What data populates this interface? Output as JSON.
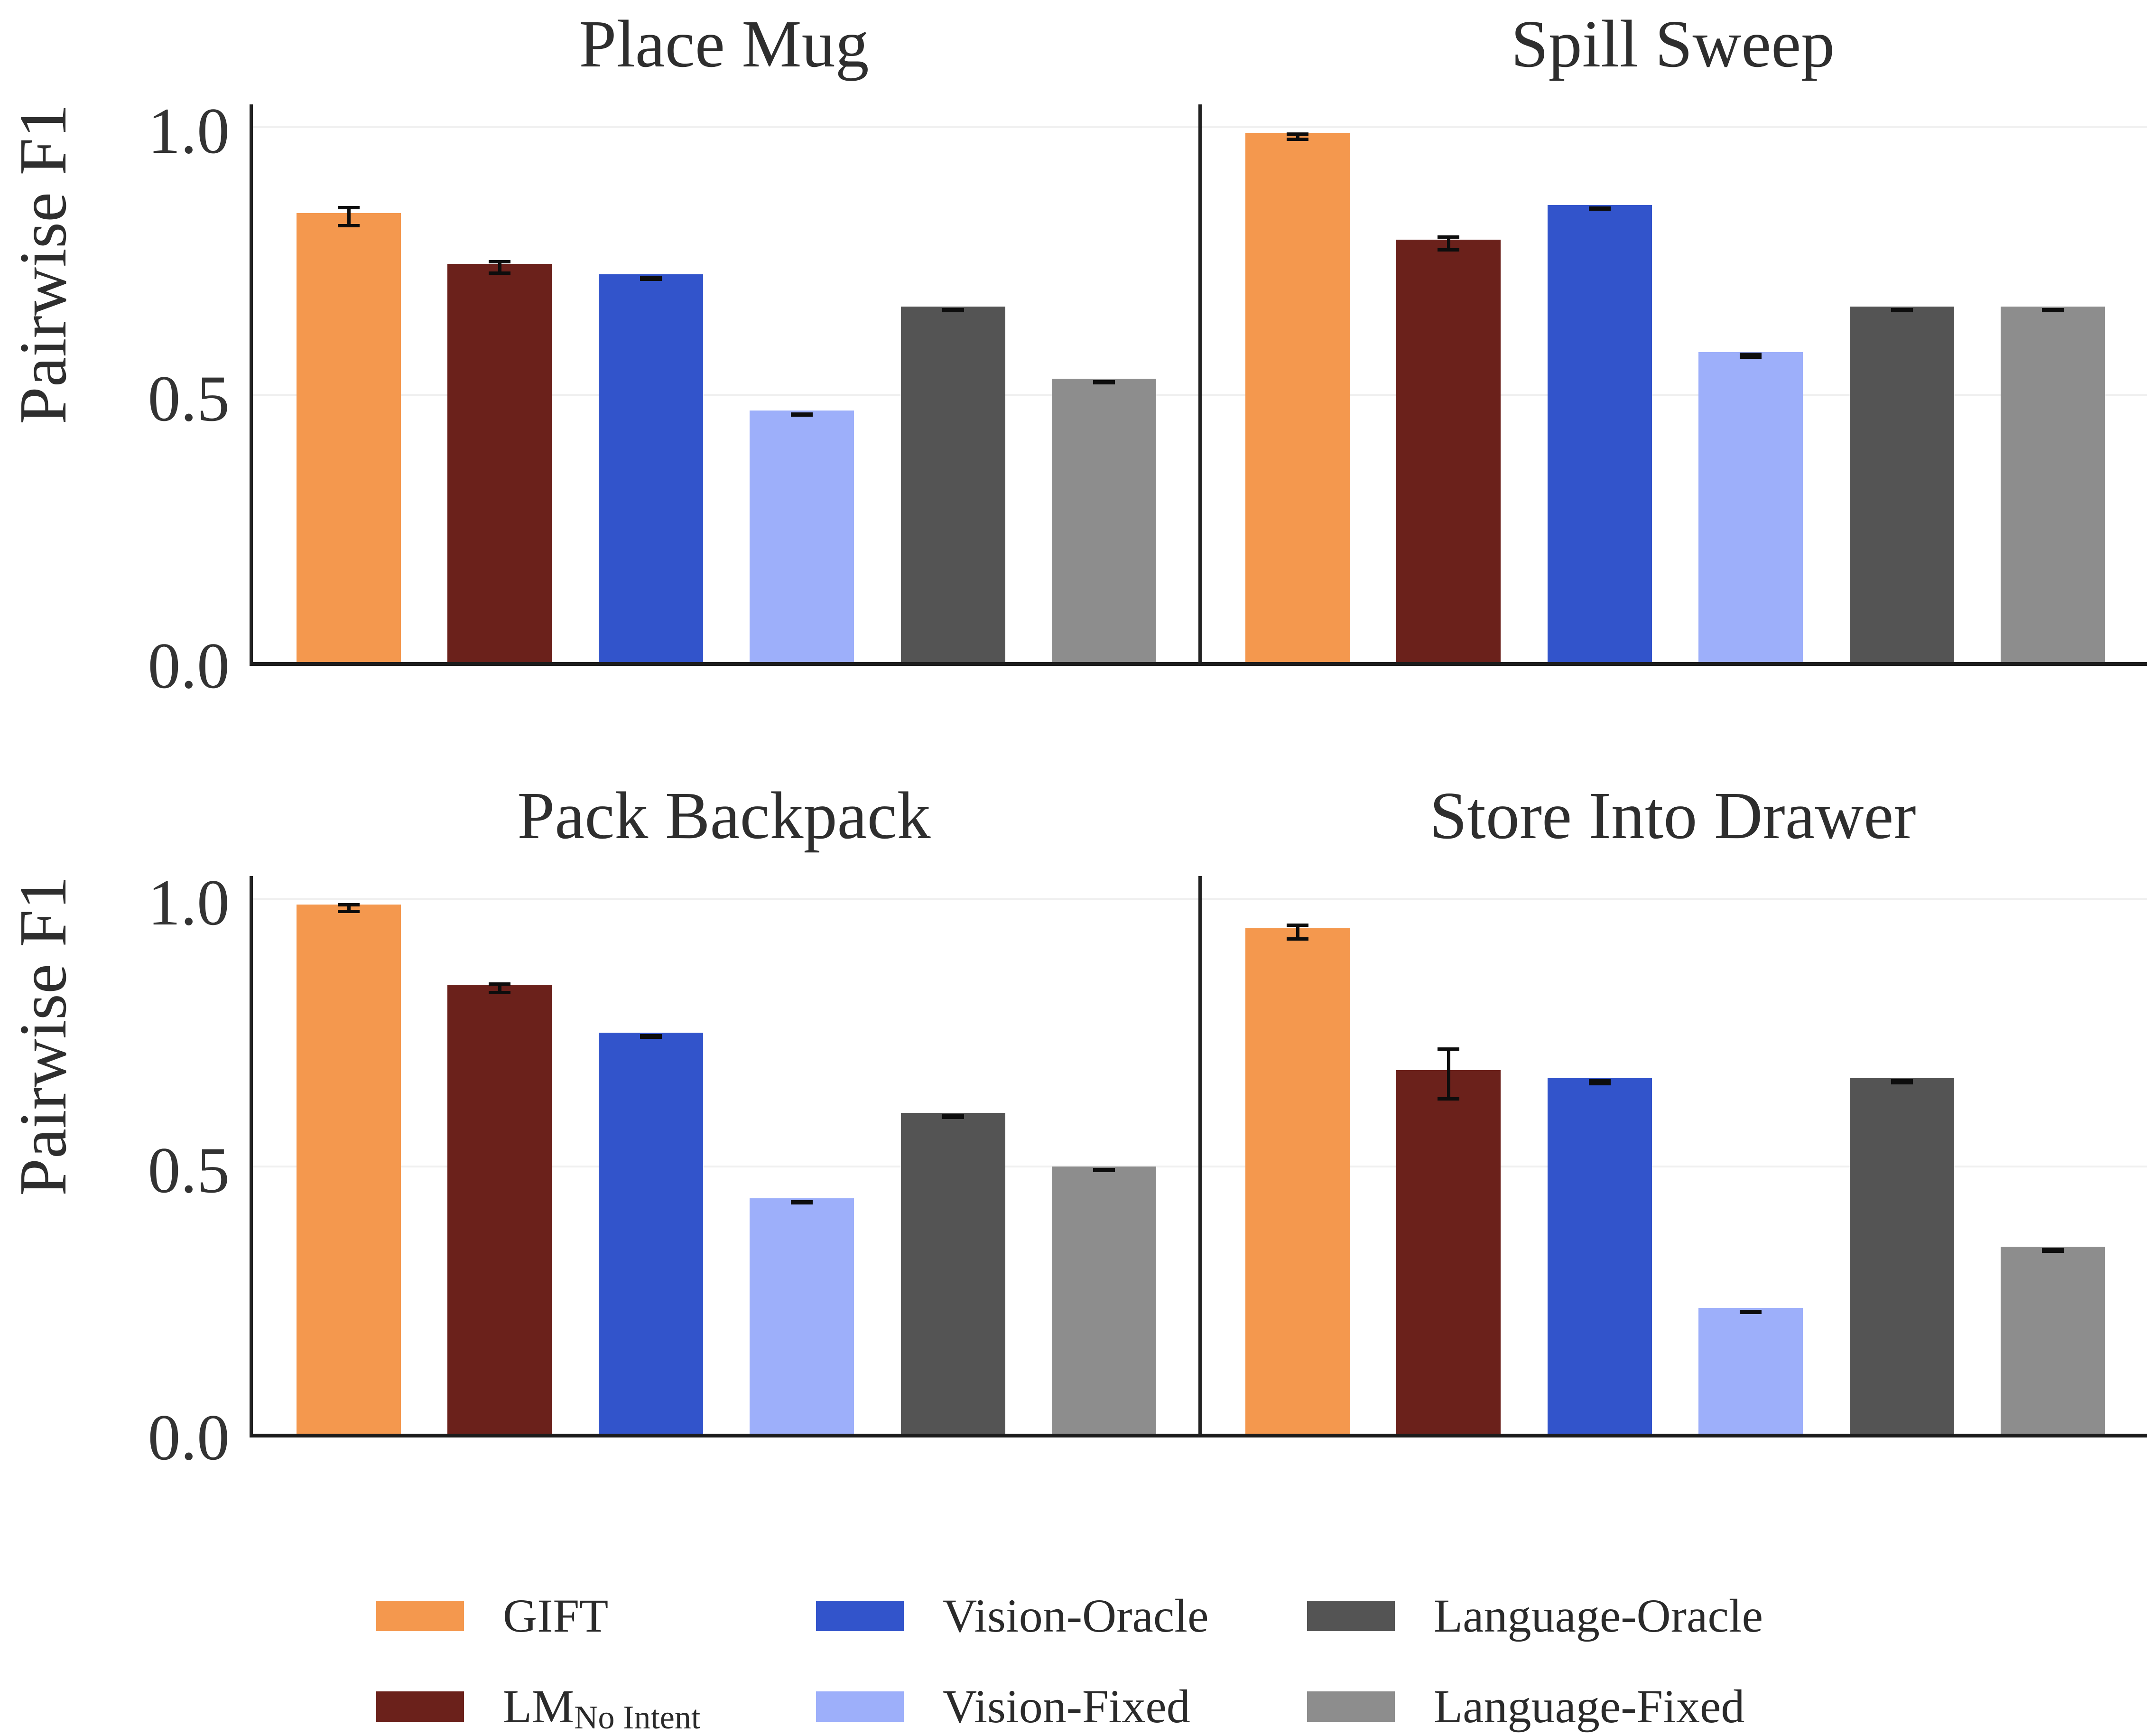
{
  "axis": {
    "ylabel": "Pairwise F1",
    "ticks": [
      "1.0",
      "0.5",
      "0.0"
    ],
    "ylim": [
      0,
      1.05
    ],
    "gridlines": [
      1.0,
      0.5
    ],
    "grid_color": "#f0f0f0",
    "spine_color": "#222222"
  },
  "legend": {
    "items": [
      {
        "label": "GIFT",
        "sub": "",
        "color": "#F4984E"
      },
      {
        "label": "LM",
        "sub": "No Intent",
        "color": "#6B211B"
      },
      {
        "label": "Vision-Oracle",
        "sub": "",
        "color": "#3254CB"
      },
      {
        "label": "Vision-Fixed",
        "sub": "",
        "color": "#9DAFFA"
      },
      {
        "label": "Language-Oracle",
        "sub": "",
        "color": "#545454"
      },
      {
        "label": "Language-Fixed",
        "sub": "",
        "color": "#8D8D8D"
      }
    ]
  },
  "chart_data": [
    {
      "type": "bar",
      "title": "Place Mug",
      "ylabel": "Pairwise F1",
      "ylim": [
        0,
        1.05
      ],
      "categories": [
        "GIFT",
        "LM No Intent",
        "Vision-Oracle",
        "Vision-Fixed",
        "Language-Oracle",
        "Language-Fixed"
      ],
      "values": [
        0.84,
        0.745,
        0.725,
        0.47,
        0.665,
        0.53
      ],
      "errors": [
        0.02,
        0.014,
        0.005,
        0.004,
        0.004,
        0.004
      ]
    },
    {
      "type": "bar",
      "title": "Spill Sweep",
      "ylabel": "Pairwise F1",
      "ylim": [
        0,
        1.05
      ],
      "categories": [
        "GIFT",
        "LM No Intent",
        "Vision-Oracle",
        "Vision-Fixed",
        "Language-Oracle",
        "Language-Fixed"
      ],
      "values": [
        0.99,
        0.79,
        0.855,
        0.58,
        0.665,
        0.665
      ],
      "errors": [
        0.008,
        0.015,
        0.004,
        0.006,
        0.004,
        0.004
      ]
    },
    {
      "type": "bar",
      "title": "Pack Backpack",
      "ylabel": "Pairwise F1",
      "ylim": [
        0,
        1.05
      ],
      "categories": [
        "GIFT",
        "LM No Intent",
        "Vision-Oracle",
        "Vision-Fixed",
        "Language-Oracle",
        "Language-Fixed"
      ],
      "values": [
        0.99,
        0.84,
        0.75,
        0.44,
        0.6,
        0.5
      ],
      "errors": [
        0.009,
        0.011,
        0.004,
        0.004,
        0.004,
        0.004
      ]
    },
    {
      "type": "bar",
      "title": "Store Into Drawer",
      "ylabel": "Pairwise F1",
      "ylim": [
        0,
        1.05
      ],
      "categories": [
        "GIFT",
        "LM No Intent",
        "Vision-Oracle",
        "Vision-Fixed",
        "Language-Oracle",
        "Language-Fixed"
      ],
      "values": [
        0.945,
        0.68,
        0.665,
        0.235,
        0.665,
        0.35
      ],
      "errors": [
        0.016,
        0.05,
        0.006,
        0.004,
        0.005,
        0.005
      ]
    }
  ]
}
